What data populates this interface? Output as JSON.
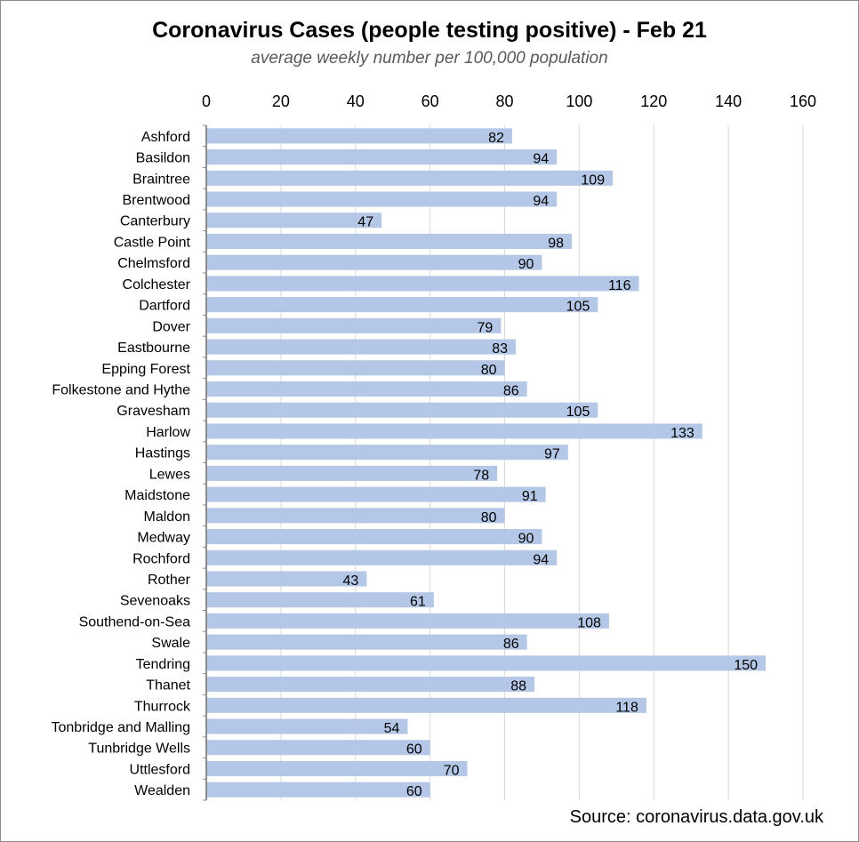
{
  "chart_data": {
    "type": "bar",
    "orientation": "horizontal",
    "title": "Coronavirus Cases (people testing positive) - Feb 21",
    "subtitle": "average weekly  number per 100,000 population",
    "source": "Source: coronavirus.data.gov.uk",
    "xlim": [
      0,
      160
    ],
    "ticks": [
      0,
      20,
      40,
      60,
      80,
      100,
      120,
      140,
      160
    ],
    "axis_position": "top",
    "grid": true,
    "bar_color": "#b4c7e7",
    "categories": [
      "Ashford",
      "Basildon",
      "Braintree",
      "Brentwood",
      "Canterbury",
      "Castle Point",
      "Chelmsford",
      "Colchester",
      "Dartford",
      "Dover",
      "Eastbourne",
      "Epping Forest",
      "Folkestone and Hythe",
      "Gravesham",
      "Harlow",
      "Hastings",
      "Lewes",
      "Maidstone",
      "Maldon",
      "Medway",
      "Rochford",
      "Rother",
      "Sevenoaks",
      "Southend-on-Sea",
      "Swale",
      "Tendring",
      "Thanet",
      "Thurrock",
      "Tonbridge and Malling",
      "Tunbridge Wells",
      "Uttlesford",
      "Wealden"
    ],
    "values": [
      82,
      94,
      109,
      94,
      47,
      98,
      90,
      116,
      105,
      79,
      83,
      80,
      86,
      105,
      133,
      97,
      78,
      91,
      80,
      90,
      94,
      43,
      61,
      108,
      86,
      150,
      88,
      118,
      54,
      60,
      70,
      60
    ]
  }
}
